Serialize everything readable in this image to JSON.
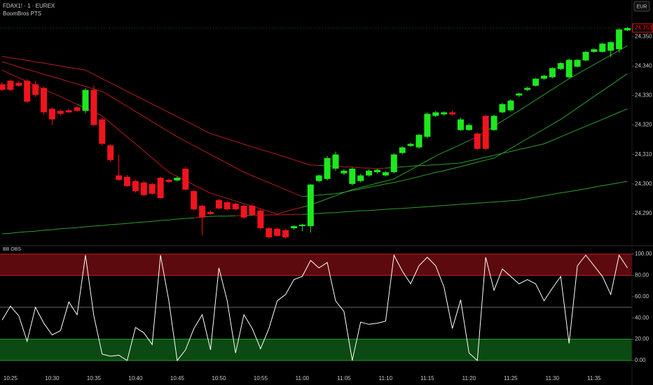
{
  "header": {
    "symbol": "FDAX1! · 1 · EUREX",
    "indicator": "BoomBros PTS",
    "currency": "EUR"
  },
  "chart_data": [
    {
      "type": "candlestick",
      "open": [
        24333.8,
        24335.0,
        24334.3,
        24335.0,
        24333.8,
        24332.6,
        24325.5,
        24324.8,
        24325.0,
        24326.0,
        24324.8,
        24331.9,
        24321.9,
        24313.1,
        24302.9,
        24302.4,
        24301.0,
        24300.5,
        24300.0,
        24302.1,
        24301.4,
        24301.2,
        24305.2,
        24297.6,
        24292.6,
        24290.5,
        24294.5,
        24293.8,
        24293.3,
        24292.6,
        24292.6,
        24291.0,
        24285.0,
        24284.8,
        24284.3,
        24285.0,
        24285.7,
        24285.7,
        24301.0,
        24301.7,
        24305.2,
        24303.6,
        24300.0,
        24301.0,
        24302.9,
        24304.0,
        24302.9,
        24304.0,
        24310.5,
        24312.9,
        24312.4,
        24316.0,
        24323.1,
        24323.6,
        24324.3,
        24318.3,
        24318.3,
        24317.1,
        24323.1,
        24318.3,
        24324.3,
        24325.0,
        24330.0,
        24331.9,
        24333.3,
        24335.7,
        24336.2,
        24339.0,
        24336.2,
        24339.8,
        24341.9,
        24344.8,
        24344.8,
        24345.2,
        24345.7,
        24352.1
      ],
      "high": [
        24334.5,
        24335.5,
        24335.0,
        24335.5,
        24335.0,
        24333.0,
        24326.0,
        24325.2,
        24325.5,
        24326.5,
        24332.5,
        24333.3,
        24322.5,
        24313.5,
        24310.0,
        24303.0,
        24301.5,
        24301.0,
        24300.5,
        24302.5,
        24301.8,
        24302.5,
        24305.8,
        24298.0,
        24293.0,
        24291.0,
        24295.0,
        24294.3,
        24293.8,
        24293.0,
        24293.2,
        24291.5,
        24285.4,
        24285.2,
        24284.8,
        24286.0,
        24286.5,
        24300.0,
        24303.2,
        24309.5,
        24311.0,
        24305.0,
        24305.6,
        24303.5,
        24305.0,
        24305.2,
        24304.4,
        24310.5,
        24312.8,
        24314.0,
        24317.0,
        24324.2,
        24324.8,
        24324.7,
        24325.0,
        24322.5,
        24320.5,
        24317.5,
        24323.5,
        24323.5,
        24327.5,
        24328.8,
        24331.0,
        24333.0,
        24336.0,
        24337.0,
        24339.6,
        24341.3,
        24342.5,
        24342.4,
        24345.2,
        24346.0,
        24348.0,
        24348.5,
        24352.8,
        24353.2
      ],
      "low": [
        24331.5,
        24331.5,
        24333.0,
        24327.5,
        24329.5,
        24323.5,
        24320.0,
        24323.2,
        24324.0,
        24324.5,
        24324.0,
        24319.5,
        24313.0,
        24307.5,
        24301.0,
        24299.0,
        24297.0,
        24296.0,
        24296.3,
        24295.0,
        24300.3,
        24300.8,
        24297.8,
        24291.0,
        24282.6,
        24289.5,
        24291.3,
        24291.0,
        24291.0,
        24288.2,
        24289.2,
        24284.5,
        24281.5,
        24282.0,
        24281.5,
        24284.5,
        24284.0,
        24283.5,
        24300.5,
        24301.2,
        24304.5,
        24303.0,
        24299.5,
        24300.5,
        24302.5,
        24303.5,
        24302.5,
        24303.5,
        24310.0,
        24312.5,
        24312.0,
        24315.5,
        24322.7,
        24323.2,
        24323.0,
        24318.0,
        24318.0,
        24311.5,
        24311.5,
        24318.0,
        24324.0,
        24324.5,
        24329.5,
        24331.5,
        24333.0,
        24335.3,
        24335.8,
        24338.6,
        24335.8,
        24339.5,
        24341.5,
        24344.5,
        24344.5,
        24343.0,
        24344.5,
        24351.8
      ],
      "close": [
        24331.9,
        24331.9,
        24333.3,
        24327.9,
        24330.2,
        24324.3,
        24321.9,
        24323.8,
        24324.3,
        24324.8,
        24331.9,
        24320.0,
        24313.6,
        24308.1,
        24301.4,
        24299.3,
        24297.6,
        24296.2,
        24296.7,
        24295.2,
        24300.7,
        24302.1,
        24298.1,
        24291.4,
        24288.6,
        24289.8,
        24291.7,
        24291.4,
        24291.4,
        24288.6,
        24289.5,
        24285.0,
        24281.9,
        24282.4,
        24281.9,
        24285.7,
        24286.2,
        24299.8,
        24302.9,
        24308.8,
        24310.0,
        24304.5,
        24305.2,
        24302.9,
        24304.5,
        24304.8,
        24304.0,
        24310.0,
        24312.4,
        24313.6,
        24316.7,
        24323.8,
        24324.3,
        24324.3,
        24323.6,
        24321.9,
        24320.0,
        24311.9,
        24311.9,
        24323.1,
        24327.1,
        24328.3,
        24330.7,
        24332.6,
        24335.7,
        24336.7,
        24339.3,
        24341.0,
        24342.1,
        24342.1,
        24344.8,
        24345.7,
        24347.6,
        24348.1,
        24352.4,
        24352.9
      ],
      "lines": [
        {
          "values": [
            24338.6,
            24337.3,
            24336.0,
            24334.7,
            24333.4,
            24332.1,
            24330.9,
            24329.6,
            24328.3,
            24327.0,
            24325.7,
            24324.4,
            24323.1,
            24320.7,
            24318.3,
            24315.9,
            24313.6,
            24311.2,
            24308.8,
            24306.4,
            24304.0,
            24302.6,
            24301.2,
            24299.7,
            24298.3,
            24296.9,
            24296.0,
            24295.1,
            24294.2,
            24293.3,
            24292.5,
            24291.6,
            24290.7,
            24289.8,
            24290.6,
            24291.4,
            24292.1,
            24292.9,
            24293.9,
            24295.0,
            24296.0,
            24297.1,
            24298.1,
            24298.8,
            24299.5,
            24300.3,
            24301.0,
            24301.7,
            24303.3,
            24304.8,
            24306.4,
            24307.9,
            24309.5,
            24310.8,
            24312.1,
            24313.4,
            24314.7,
            24316.0,
            24317.8,
            24319.6,
            24321.4,
            24323.1,
            24324.9,
            24326.7,
            24328.5,
            24330.3,
            24332.1,
            24333.9,
            24335.7,
            24337.3,
            24338.9,
            24340.5,
            24342.1,
            24343.7,
            24345.3,
            24346.9
          ]
        },
        {
          "values": [
            24341.4,
            24340.6,
            24339.7,
            24338.9,
            24338.1,
            24337.2,
            24336.4,
            24335.6,
            24334.7,
            24333.9,
            24333.1,
            24332.2,
            24331.4,
            24329.7,
            24328.0,
            24326.3,
            24324.6,
            24322.9,
            24321.1,
            24319.4,
            24317.7,
            24316.0,
            24314.5,
            24313.0,
            24311.5,
            24310.0,
            24308.5,
            24307.0,
            24305.5,
            24304.0,
            24302.8,
            24301.6,
            24300.4,
            24299.3,
            24298.1,
            24296.9,
            24295.7,
            24296.0,
            24296.2,
            24296.5,
            24296.7,
            24297.2,
            24297.8,
            24298.3,
            24298.9,
            24299.4,
            24300.0,
            24300.5,
            24301.2,
            24301.8,
            24302.5,
            24303.2,
            24303.9,
            24304.5,
            24305.2,
            24305.9,
            24306.6,
            24307.4,
            24308.1,
            24308.8,
            24310.4,
            24312.1,
            24313.7,
            24315.4,
            24317.0,
            24318.6,
            24320.3,
            24321.9,
            24323.8,
            24325.8,
            24327.7,
            24329.7,
            24331.6,
            24333.5,
            24335.5,
            24337.4
          ]
        },
        {
          "values": [
            24343.3,
            24342.8,
            24342.4,
            24341.9,
            24341.4,
            24341.0,
            24340.5,
            24340.0,
            24339.5,
            24339.1,
            24338.6,
            24337.2,
            24335.7,
            24334.3,
            24332.9,
            24331.4,
            24330.0,
            24328.6,
            24327.1,
            24325.7,
            24324.3,
            24322.8,
            24321.4,
            24320.0,
            24318.5,
            24317.1,
            24316.2,
            24315.3,
            24314.4,
            24313.5,
            24312.6,
            24311.7,
            24310.9,
            24310.0,
            24309.1,
            24308.2,
            24307.3,
            24306.4,
            24306.3,
            24306.1,
            24306.0,
            24305.8,
            24305.7,
            24305.5,
            24305.4,
            24305.2,
            24305.4,
            24305.6,
            24305.8,
            24306.0,
            24306.2,
            24306.3,
            24306.5,
            24306.7,
            24306.9,
            24307.1,
            24307.8,
            24308.4,
            24309.1,
            24309.7,
            24310.4,
            24311.0,
            24311.7,
            24312.3,
            24313.0,
            24313.6,
            24314.8,
            24316.0,
            24317.2,
            24318.4,
            24319.6,
            24320.7,
            24321.9,
            24323.1,
            24324.3,
            24325.5
          ]
        },
        {
          "values": [
            24283.1,
            24283.3,
            24283.6,
            24283.8,
            24284.0,
            24284.3,
            24284.5,
            24284.8,
            24285.0,
            24285.2,
            24285.5,
            24285.7,
            24285.9,
            24286.2,
            24286.4,
            24286.6,
            24286.9,
            24287.1,
            24287.3,
            24287.6,
            24287.8,
            24288.1,
            24288.3,
            24288.5,
            24288.8,
            24289.0,
            24289.1,
            24289.1,
            24289.2,
            24289.3,
            24289.3,
            24289.4,
            24289.5,
            24289.5,
            24289.6,
            24289.7,
            24289.7,
            24289.8,
            24290.0,
            24290.2,
            24290.3,
            24290.5,
            24290.7,
            24290.9,
            24291.0,
            24291.2,
            24291.4,
            24291.6,
            24291.7,
            24291.9,
            24292.1,
            24292.3,
            24292.5,
            24292.7,
            24292.9,
            24293.1,
            24293.3,
            24293.5,
            24293.7,
            24293.9,
            24294.1,
            24294.3,
            24294.5,
            24295.0,
            24295.5,
            24296.0,
            24296.5,
            24297.0,
            24297.4,
            24297.9,
            24298.4,
            24298.9,
            24299.4,
            24299.9,
            24300.4,
            24300.9
          ]
        }
      ],
      "up_color": "#1ee81e",
      "down_color": "#f0141e",
      "line_up_color": "#2e9e2e",
      "line_down_color": "#b71c1c",
      "ylim": [
        24279.3,
        24362.4
      ],
      "yticks": [
        {
          "value": 24290,
          "label": "24,290"
        },
        {
          "value": 24300,
          "label": "24,300"
        },
        {
          "value": 24310,
          "label": "24,310"
        },
        {
          "value": 24320,
          "label": "24,320"
        },
        {
          "value": 24330,
          "label": "24,330"
        },
        {
          "value": 24340,
          "label": "24,340"
        },
        {
          "value": 24350,
          "label": "24,350"
        }
      ],
      "last_price_label": "24,353"
    },
    {
      "type": "line",
      "title": "BB OBS",
      "categories": [
        null,
        "10:25",
        null,
        null,
        null,
        null,
        "10:30",
        null,
        null,
        null,
        null,
        "10:35",
        null,
        null,
        null,
        null,
        "10:40",
        null,
        null,
        null,
        null,
        "10:45",
        null,
        null,
        null,
        null,
        "10:50",
        null,
        null,
        null,
        null,
        "10:55",
        null,
        null,
        null,
        null,
        "11:00",
        null,
        null,
        null,
        null,
        "11:05",
        null,
        null,
        null,
        null,
        "11:10",
        null,
        null,
        null,
        null,
        "11:15",
        null,
        null,
        null,
        null,
        "11:20",
        null,
        null,
        null,
        null,
        "11:25",
        null,
        null,
        null,
        null,
        "11:30",
        null,
        null,
        null,
        null,
        "11:35",
        null,
        null,
        null,
        null
      ],
      "values": [
        38,
        51,
        42,
        18,
        50,
        35,
        24,
        28,
        55,
        43,
        99,
        42,
        6,
        4,
        5,
        0,
        31,
        26,
        15,
        99,
        56,
        0,
        10,
        30,
        43,
        10,
        87,
        56,
        7,
        43,
        30,
        11,
        30,
        56,
        62,
        76,
        79,
        94,
        87,
        92,
        56,
        46,
        0,
        36,
        34,
        35,
        37,
        99,
        84,
        72,
        89,
        97,
        89,
        69,
        30,
        57,
        7,
        0,
        97,
        66,
        86,
        79,
        72,
        76,
        72,
        56,
        68,
        79,
        16,
        89,
        99,
        89,
        79,
        62,
        99,
        87
      ],
      "color": "#ffffff",
      "bands": [
        {
          "from": 80,
          "to": 100,
          "color": "#5c0a0e",
          "edge": "#c0202a"
        },
        {
          "from": 0,
          "to": 20,
          "color": "#0b4a12",
          "edge": "#1f9a2a"
        }
      ],
      "midline": 50,
      "ylim": [
        -9.9,
        107.2
      ],
      "yticks": [
        {
          "value": 100,
          "label": "100.00"
        },
        {
          "value": 80,
          "label": "80.00"
        },
        {
          "value": 60,
          "label": "60.00"
        },
        {
          "value": 40,
          "label": "40.00"
        },
        {
          "value": 20,
          "label": "20.00"
        },
        {
          "value": 0,
          "label": "0.00"
        }
      ]
    }
  ]
}
